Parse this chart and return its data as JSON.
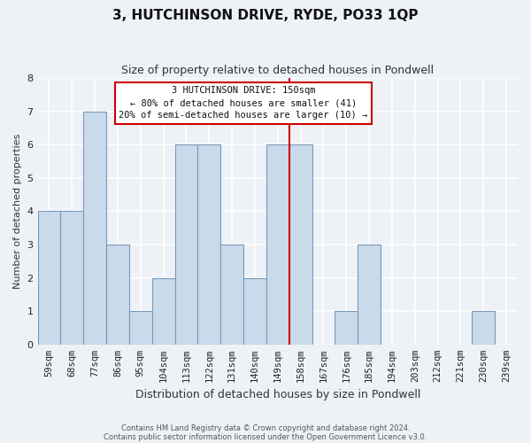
{
  "title": "3, HUTCHINSON DRIVE, RYDE, PO33 1QP",
  "subtitle": "Size of property relative to detached houses in Pondwell",
  "xlabel": "Distribution of detached houses by size in Pondwell",
  "ylabel": "Number of detached properties",
  "bar_labels": [
    "59sqm",
    "68sqm",
    "77sqm",
    "86sqm",
    "95sqm",
    "104sqm",
    "113sqm",
    "122sqm",
    "131sqm",
    "140sqm",
    "149sqm",
    "158sqm",
    "167sqm",
    "176sqm",
    "185sqm",
    "194sqm",
    "203sqm",
    "212sqm",
    "221sqm",
    "230sqm",
    "239sqm"
  ],
  "bar_values": [
    4,
    4,
    7,
    3,
    1,
    2,
    6,
    6,
    3,
    2,
    6,
    6,
    0,
    1,
    3,
    0,
    0,
    0,
    0,
    1,
    0
  ],
  "bar_color": "#c9daea",
  "vline_color": "#cc0000",
  "vline_x": 10,
  "annotation_box_text": "3 HUTCHINSON DRIVE: 150sqm\n← 80% of detached houses are smaller (41)\n20% of semi-detached houses are larger (10) →",
  "annotation_box_edgecolor": "#cc0000",
  "annotation_box_facecolor": "#ffffff",
  "footer_line1": "Contains HM Land Registry data © Crown copyright and database right 2024.",
  "footer_line2": "Contains public sector information licensed under the Open Government Licence v3.0.",
  "ylim": [
    0,
    8
  ],
  "yticks": [
    0,
    1,
    2,
    3,
    4,
    5,
    6,
    7,
    8
  ],
  "bg_color": "#eef2f7",
  "grid_color": "#ffffff",
  "title_fontsize": 11,
  "subtitle_fontsize": 9,
  "xlabel_fontsize": 9,
  "ylabel_fontsize": 8,
  "tick_fontsize": 7.5
}
